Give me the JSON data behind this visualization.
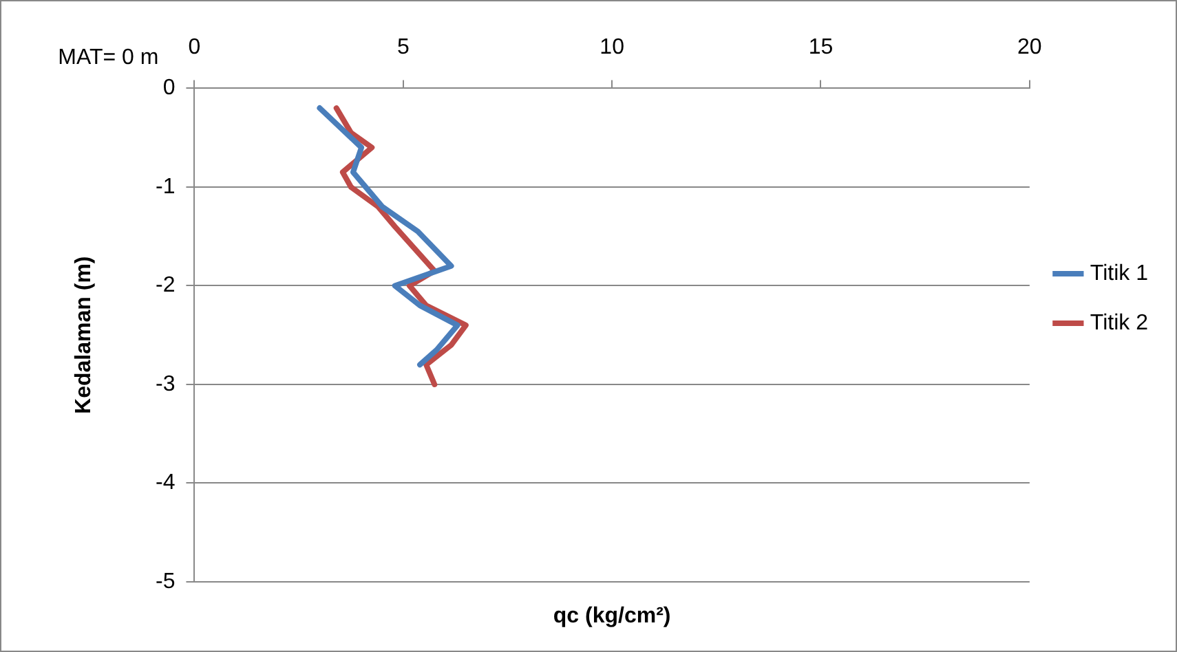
{
  "chart_data": {
    "type": "line",
    "xlabel": "qc (kg/cm²)",
    "ylabel": "Kedalaman (m)",
    "annotations": [
      "MAT= 0 m"
    ],
    "series": [
      {
        "name": "Titik 1",
        "color": "#4a7ebb",
        "x": [
          3.0,
          4.0,
          3.8,
          4.1,
          4.5,
          5.35,
          6.15,
          4.8,
          5.4,
          6.3,
          5.8,
          5.4
        ],
        "values": [
          -0.2,
          -0.6,
          -0.85,
          -1.0,
          -1.2,
          -1.45,
          -1.8,
          -2.0,
          -2.2,
          -2.4,
          -2.65,
          -2.8
        ]
      },
      {
        "name": "Titik 2",
        "color": "#be4b48",
        "x": [
          3.4,
          3.75,
          4.25,
          3.55,
          3.75,
          4.4,
          4.8,
          5.75,
          5.15,
          5.55,
          6.5,
          6.15,
          5.55,
          5.75
        ],
        "values": [
          -0.2,
          -0.45,
          -0.6,
          -0.85,
          -1.0,
          -1.2,
          -1.4,
          -1.85,
          -2.0,
          -2.2,
          -2.4,
          -2.6,
          -2.8,
          -3.0
        ]
      }
    ],
    "xlim": [
      0,
      20
    ],
    "xticks": [
      0,
      5,
      10,
      15,
      20
    ],
    "ylim": [
      -5,
      0
    ],
    "yticks": [
      0,
      -1,
      -2,
      -3,
      -4,
      -5
    ],
    "grid": "y",
    "legend": "right",
    "marker": "none",
    "line_style": "solid"
  }
}
